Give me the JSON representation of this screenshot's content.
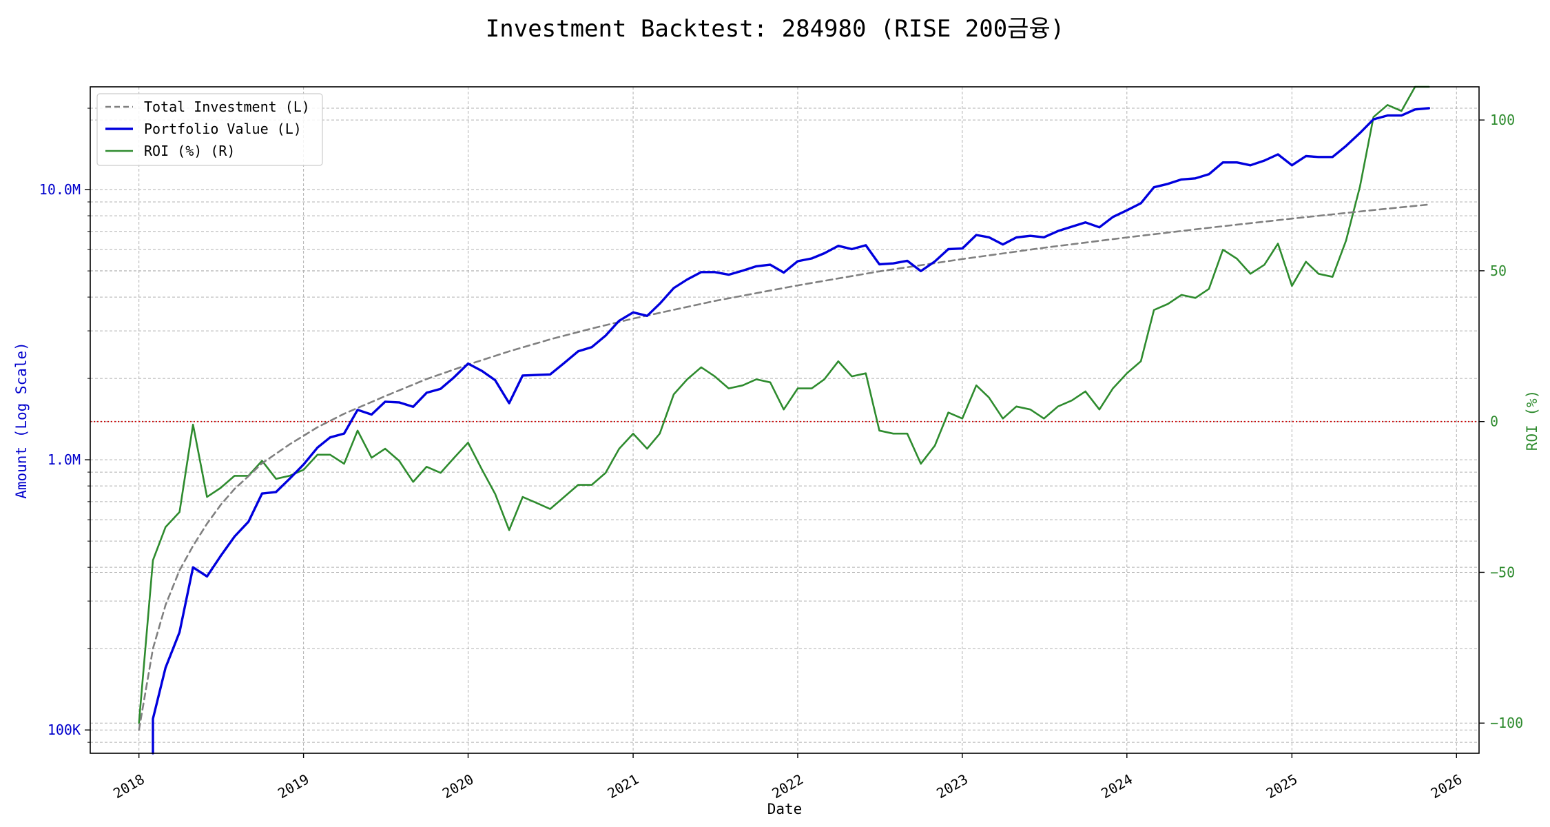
{
  "chart_data": {
    "type": "line",
    "title": "Investment Backtest: 284980 (RISE 200금융)",
    "xlabel": "Date",
    "ylabel_left": "Amount (Log Scale)",
    "ylabel_right": "ROI (%)",
    "left_scale": "log",
    "ylim_left": [
      82000,
      24000000
    ],
    "ylim_right": [
      -110,
      111
    ],
    "xlim": [
      "2017-09-15",
      "2026-02-20"
    ],
    "x_ticks": [
      "2018",
      "2019",
      "2020",
      "2021",
      "2022",
      "2023",
      "2024",
      "2025",
      "2026"
    ],
    "left_ticks": [
      {
        "value": 100000,
        "label": "100K"
      },
      {
        "value": 1000000,
        "label": "1.0M"
      },
      {
        "value": 10000000,
        "label": "10.0M"
      }
    ],
    "right_ticks": [
      {
        "value": -100,
        "label": "−100"
      },
      {
        "value": -50,
        "label": "−50"
      },
      {
        "value": 0,
        "label": "0"
      },
      {
        "value": 50,
        "label": "50"
      },
      {
        "value": 100,
        "label": "100"
      }
    ],
    "grid": true,
    "legend_position": "top-left",
    "reference_line": {
      "axis": "right",
      "value": 0,
      "color": "#cc0000",
      "style": "dotted"
    },
    "colors": {
      "total_investment": "#808080",
      "portfolio_value": "#0000dd",
      "roi": "#2e8b2e",
      "left_axis": "#0000cc",
      "right_axis": "#2e8b2e"
    },
    "series": [
      {
        "name": "Total Investment (L)",
        "axis": "left",
        "style": "dashed",
        "points": [
          [
            "2018-01-01",
            100000
          ],
          [
            "2018-02-01",
            200000
          ],
          [
            "2018-03-01",
            290000
          ],
          [
            "2018-04-01",
            390000
          ],
          [
            "2018-05-01",
            480000
          ],
          [
            "2018-06-01",
            580000
          ],
          [
            "2018-07-01",
            680000
          ],
          [
            "2018-08-01",
            780000
          ],
          [
            "2018-09-01",
            870000
          ],
          [
            "2018-10-01",
            970000
          ],
          [
            "2018-12-01",
            1140000
          ],
          [
            "2019-02-01",
            1320000
          ],
          [
            "2019-04-01",
            1480000
          ],
          [
            "2019-07-01",
            1720000
          ],
          [
            "2019-10-01",
            1990000
          ],
          [
            "2020-01-01",
            2250000
          ],
          [
            "2020-04-01",
            2520000
          ],
          [
            "2020-07-01",
            2790000
          ],
          [
            "2020-10-01",
            3060000
          ],
          [
            "2021-01-01",
            3330000
          ],
          [
            "2021-07-01",
            3870000
          ],
          [
            "2022-01-01",
            4420000
          ],
          [
            "2022-07-01",
            4980000
          ],
          [
            "2023-01-01",
            5530000
          ],
          [
            "2023-07-01",
            6090000
          ],
          [
            "2024-01-01",
            6650000
          ],
          [
            "2024-07-01",
            7220000
          ],
          [
            "2025-01-01",
            7810000
          ],
          [
            "2025-07-01",
            8400000
          ],
          [
            "2025-11-01",
            8800000
          ]
        ]
      },
      {
        "name": "Portfolio Value (L)",
        "axis": "left",
        "style": "solid",
        "points": [
          [
            "2018-02-01",
            70000
          ],
          [
            "2018-02-01",
            110000
          ],
          [
            "2018-03-01",
            170000
          ],
          [
            "2018-04-01",
            230000
          ],
          [
            "2018-05-01",
            400000
          ],
          [
            "2018-06-01",
            370000
          ],
          [
            "2018-07-01",
            440000
          ],
          [
            "2018-08-01",
            520000
          ],
          [
            "2018-09-01",
            590000
          ],
          [
            "2018-10-01",
            750000
          ],
          [
            "2018-11-01",
            760000
          ],
          [
            "2018-12-01",
            850000
          ],
          [
            "2019-01-01",
            960000
          ],
          [
            "2019-02-01",
            1110000
          ],
          [
            "2019-03-01",
            1210000
          ],
          [
            "2019-04-01",
            1250000
          ],
          [
            "2019-05-01",
            1530000
          ],
          [
            "2019-06-01",
            1470000
          ],
          [
            "2019-07-01",
            1640000
          ],
          [
            "2019-08-01",
            1630000
          ],
          [
            "2019-09-01",
            1570000
          ],
          [
            "2019-10-01",
            1770000
          ],
          [
            "2019-11-01",
            1830000
          ],
          [
            "2019-12-01",
            2020000
          ],
          [
            "2020-01-01",
            2270000
          ],
          [
            "2020-02-01",
            2130000
          ],
          [
            "2020-03-01",
            1970000
          ],
          [
            "2020-04-01",
            1620000
          ],
          [
            "2020-05-01",
            2050000
          ],
          [
            "2020-06-01",
            2060000
          ],
          [
            "2020-07-01",
            2070000
          ],
          [
            "2020-08-01",
            2280000
          ],
          [
            "2020-09-01",
            2520000
          ],
          [
            "2020-10-01",
            2610000
          ],
          [
            "2020-11-01",
            2880000
          ],
          [
            "2020-12-01",
            3270000
          ],
          [
            "2021-01-01",
            3510000
          ],
          [
            "2021-02-01",
            3410000
          ],
          [
            "2021-03-01",
            3780000
          ],
          [
            "2021-04-01",
            4320000
          ],
          [
            "2021-05-01",
            4650000
          ],
          [
            "2021-06-01",
            4950000
          ],
          [
            "2021-07-01",
            4950000
          ],
          [
            "2021-08-01",
            4840000
          ],
          [
            "2021-09-01",
            5010000
          ],
          [
            "2021-10-01",
            5200000
          ],
          [
            "2021-11-01",
            5270000
          ],
          [
            "2021-12-01",
            4930000
          ],
          [
            "2022-01-01",
            5430000
          ],
          [
            "2022-02-01",
            5560000
          ],
          [
            "2022-03-01",
            5810000
          ],
          [
            "2022-04-01",
            6190000
          ],
          [
            "2022-05-01",
            6020000
          ],
          [
            "2022-06-01",
            6220000
          ],
          [
            "2022-07-01",
            5290000
          ],
          [
            "2022-08-01",
            5330000
          ],
          [
            "2022-09-01",
            5450000
          ],
          [
            "2022-10-01",
            4990000
          ],
          [
            "2022-11-01",
            5420000
          ],
          [
            "2022-12-01",
            6020000
          ],
          [
            "2023-01-01",
            6050000
          ],
          [
            "2023-02-01",
            6790000
          ],
          [
            "2023-03-01",
            6660000
          ],
          [
            "2023-04-01",
            6260000
          ],
          [
            "2023-05-01",
            6650000
          ],
          [
            "2023-06-01",
            6740000
          ],
          [
            "2023-07-01",
            6660000
          ],
          [
            "2023-08-01",
            7020000
          ],
          [
            "2023-09-01",
            7290000
          ],
          [
            "2023-10-01",
            7560000
          ],
          [
            "2023-11-01",
            7250000
          ],
          [
            "2023-12-01",
            7920000
          ],
          [
            "2024-01-01",
            8380000
          ],
          [
            "2024-02-01",
            8900000
          ],
          [
            "2024-03-01",
            10200000
          ],
          [
            "2024-04-01",
            10500000
          ],
          [
            "2024-05-01",
            10900000
          ],
          [
            "2024-06-01",
            11000000
          ],
          [
            "2024-07-01",
            11400000
          ],
          [
            "2024-08-01",
            12600000
          ],
          [
            "2024-09-01",
            12600000
          ],
          [
            "2024-10-01",
            12300000
          ],
          [
            "2024-11-01",
            12800000
          ],
          [
            "2024-12-01",
            13500000
          ],
          [
            "2025-01-01",
            12300000
          ],
          [
            "2025-02-01",
            13300000
          ],
          [
            "2025-03-01",
            13200000
          ],
          [
            "2025-04-01",
            13200000
          ],
          [
            "2025-05-01",
            14500000
          ],
          [
            "2025-06-01",
            16200000
          ],
          [
            "2025-07-01",
            18200000
          ],
          [
            "2025-08-01",
            18800000
          ],
          [
            "2025-09-01",
            18800000
          ],
          [
            "2025-10-01",
            19800000
          ],
          [
            "2025-11-01",
            20000000
          ]
        ]
      },
      {
        "name": "ROI (%) (R)",
        "axis": "right",
        "style": "solid",
        "points": [
          [
            "2018-01-01",
            -100
          ],
          [
            "2018-02-01",
            -46
          ],
          [
            "2018-03-01",
            -35
          ],
          [
            "2018-04-01",
            -30
          ],
          [
            "2018-05-01",
            -1
          ],
          [
            "2018-06-01",
            -25
          ],
          [
            "2018-07-01",
            -22
          ],
          [
            "2018-08-01",
            -18
          ],
          [
            "2018-09-01",
            -18
          ],
          [
            "2018-10-01",
            -13
          ],
          [
            "2018-11-01",
            -19
          ],
          [
            "2018-12-01",
            -18
          ],
          [
            "2019-01-01",
            -16
          ],
          [
            "2019-02-01",
            -11
          ],
          [
            "2019-03-01",
            -11
          ],
          [
            "2019-04-01",
            -14
          ],
          [
            "2019-05-01",
            -3
          ],
          [
            "2019-06-01",
            -12
          ],
          [
            "2019-07-01",
            -9
          ],
          [
            "2019-08-01",
            -13
          ],
          [
            "2019-09-01",
            -20
          ],
          [
            "2019-10-01",
            -15
          ],
          [
            "2019-11-01",
            -17
          ],
          [
            "2019-12-01",
            -12
          ],
          [
            "2020-01-01",
            -7
          ],
          [
            "2020-02-01",
            -16
          ],
          [
            "2020-03-01",
            -24
          ],
          [
            "2020-04-01",
            -36
          ],
          [
            "2020-05-01",
            -25
          ],
          [
            "2020-06-01",
            -27
          ],
          [
            "2020-07-01",
            -29
          ],
          [
            "2020-08-01",
            -25
          ],
          [
            "2020-09-01",
            -21
          ],
          [
            "2020-10-01",
            -21
          ],
          [
            "2020-11-01",
            -17
          ],
          [
            "2020-12-01",
            -9
          ],
          [
            "2021-01-01",
            -4
          ],
          [
            "2021-02-01",
            -9
          ],
          [
            "2021-03-01",
            -4
          ],
          [
            "2021-04-01",
            9
          ],
          [
            "2021-05-01",
            14
          ],
          [
            "2021-06-01",
            18
          ],
          [
            "2021-07-01",
            15
          ],
          [
            "2021-08-01",
            11
          ],
          [
            "2021-09-01",
            12
          ],
          [
            "2021-10-01",
            14
          ],
          [
            "2021-11-01",
            13
          ],
          [
            "2021-12-01",
            4
          ],
          [
            "2022-01-01",
            11
          ],
          [
            "2022-02-01",
            11
          ],
          [
            "2022-03-01",
            14
          ],
          [
            "2022-04-01",
            20
          ],
          [
            "2022-05-01",
            15
          ],
          [
            "2022-06-01",
            16
          ],
          [
            "2022-07-01",
            -3
          ],
          [
            "2022-08-01",
            -4
          ],
          [
            "2022-09-01",
            -4
          ],
          [
            "2022-10-01",
            -14
          ],
          [
            "2022-11-01",
            -8
          ],
          [
            "2022-12-01",
            3
          ],
          [
            "2023-01-01",
            1
          ],
          [
            "2023-02-01",
            12
          ],
          [
            "2023-03-01",
            8
          ],
          [
            "2023-04-01",
            1
          ],
          [
            "2023-05-01",
            5
          ],
          [
            "2023-06-01",
            4
          ],
          [
            "2023-07-01",
            1
          ],
          [
            "2023-08-01",
            5
          ],
          [
            "2023-09-01",
            7
          ],
          [
            "2023-10-01",
            10
          ],
          [
            "2023-11-01",
            4
          ],
          [
            "2023-12-01",
            11
          ],
          [
            "2024-01-01",
            16
          ],
          [
            "2024-02-01",
            20
          ],
          [
            "2024-03-01",
            37
          ],
          [
            "2024-04-01",
            39
          ],
          [
            "2024-05-01",
            42
          ],
          [
            "2024-06-01",
            41
          ],
          [
            "2024-07-01",
            44
          ],
          [
            "2024-08-01",
            57
          ],
          [
            "2024-09-01",
            54
          ],
          [
            "2024-10-01",
            49
          ],
          [
            "2024-11-01",
            52
          ],
          [
            "2024-12-01",
            59
          ],
          [
            "2025-01-01",
            45
          ],
          [
            "2025-02-01",
            53
          ],
          [
            "2025-03-01",
            49
          ],
          [
            "2025-04-01",
            48
          ],
          [
            "2025-05-01",
            60
          ],
          [
            "2025-06-01",
            78
          ],
          [
            "2025-07-01",
            101
          ],
          [
            "2025-08-01",
            105
          ],
          [
            "2025-09-01",
            103
          ],
          [
            "2025-10-01",
            111
          ],
          [
            "2025-11-01",
            111
          ]
        ]
      }
    ]
  }
}
